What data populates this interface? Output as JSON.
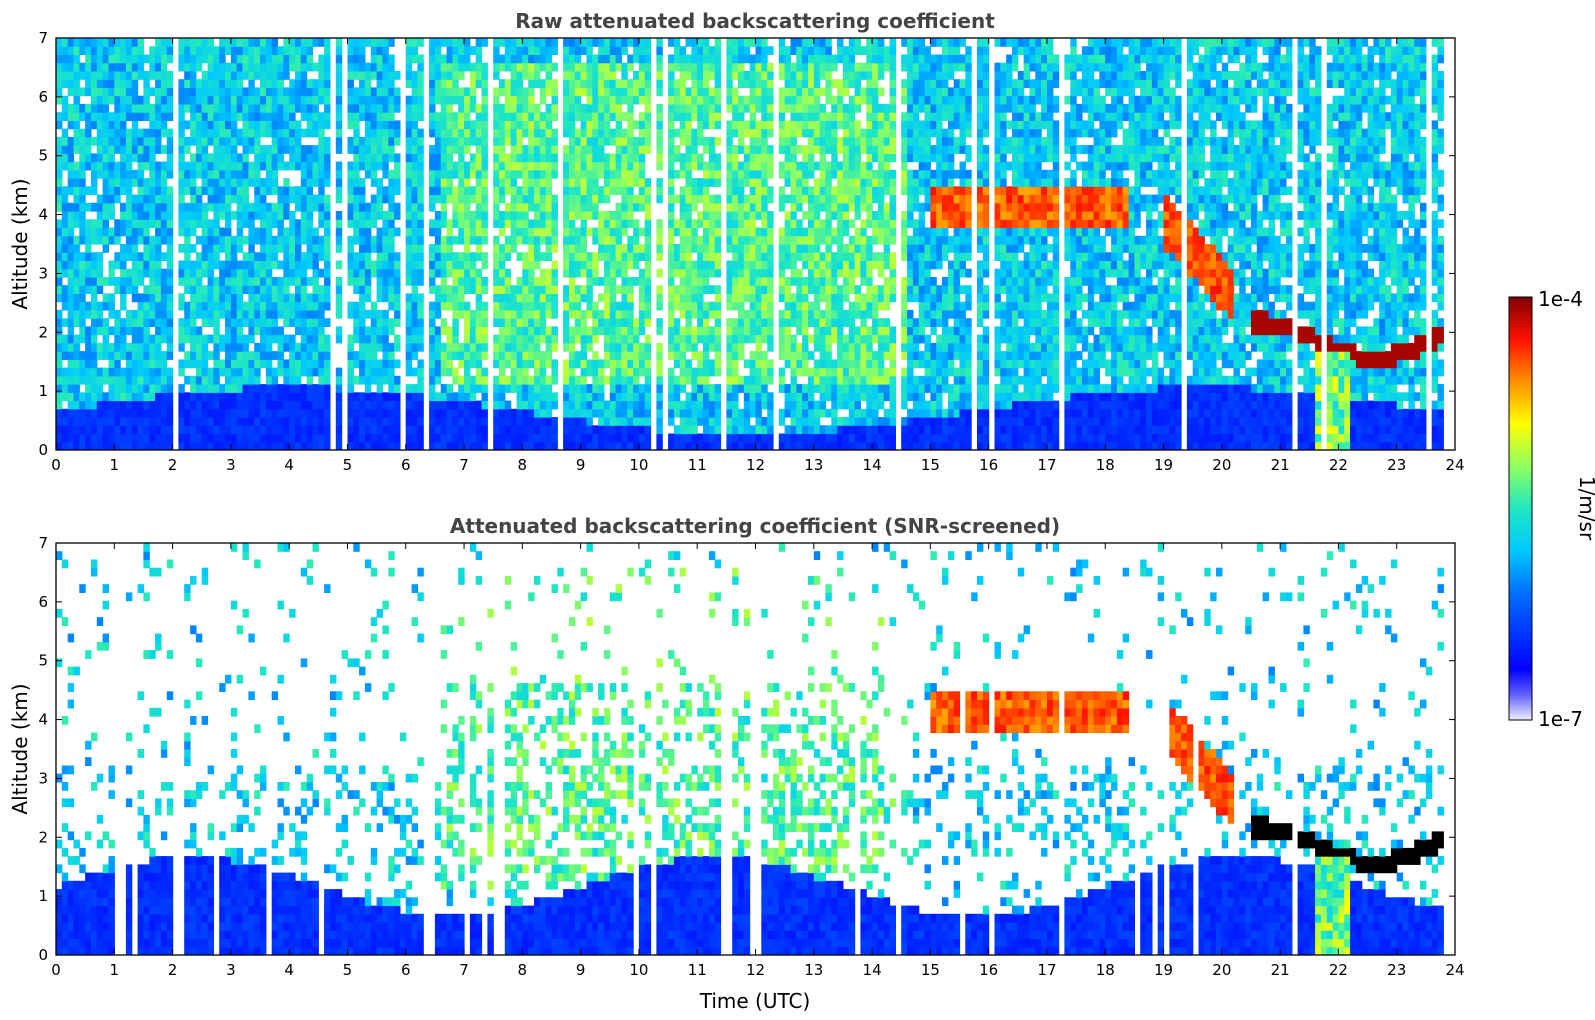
{
  "chart_data": [
    {
      "type": "heatmap",
      "title": "Raw attenuated backscattering coefficient",
      "xlabel": "",
      "ylabel": "Altitude (km)",
      "xlim": [
        0,
        24
      ],
      "ylim": [
        0,
        7
      ],
      "xticks": [
        0,
        1,
        2,
        3,
        4,
        5,
        6,
        7,
        8,
        9,
        10,
        11,
        12,
        13,
        14,
        15,
        16,
        17,
        18,
        19,
        20,
        21,
        22,
        23,
        24
      ],
      "yticks": [
        0,
        1,
        2,
        3,
        4,
        5,
        6,
        7
      ],
      "features": [
        {
          "name": "boundary-layer",
          "t_start": 0,
          "t_end": 23.8,
          "z_top": 1.0,
          "level": "low-blue"
        },
        {
          "name": "cloud-layer-4km",
          "t_start": 14.9,
          "t_end": 18.3,
          "z": 4.1,
          "level": "high"
        },
        {
          "name": "descending-cloud",
          "t_start": 19.0,
          "t_end": 20.2,
          "z_from": 3.8,
          "z_to": 2.5,
          "level": "high"
        },
        {
          "name": "low-cloud-2km",
          "t_start": 20.5,
          "t_end": 23.8,
          "z": 1.8,
          "level": "very-high"
        },
        {
          "name": "precipitation",
          "t_start": 21.6,
          "t_end": 22.2,
          "z_top": 1.6,
          "level": "mid"
        }
      ]
    },
    {
      "type": "heatmap",
      "title": "Attenuated backscattering coefficient (SNR-screened)",
      "xlabel": "Time (UTC)",
      "ylabel": "Altitude (km)",
      "xlim": [
        0,
        24
      ],
      "ylim": [
        0,
        7
      ],
      "xticks": [
        0,
        1,
        2,
        3,
        4,
        5,
        6,
        7,
        8,
        9,
        10,
        11,
        12,
        13,
        14,
        15,
        16,
        17,
        18,
        19,
        20,
        21,
        22,
        23,
        24
      ],
      "yticks": [
        0,
        1,
        2,
        3,
        4,
        5,
        6,
        7
      ],
      "features": [
        {
          "name": "boundary-layer",
          "t_start": 0,
          "t_end": 23.8,
          "z_top": 1.6,
          "level": "low-blue"
        },
        {
          "name": "aerosol-layer",
          "t_start": 6.5,
          "t_end": 14.0,
          "z_from": 1.0,
          "z_to": 4.5,
          "level": "mid-yellow"
        },
        {
          "name": "cloud-layer-4km",
          "t_start": 14.9,
          "t_end": 18.3,
          "z": 4.1,
          "level": "high"
        },
        {
          "name": "descending-cloud",
          "t_start": 19.0,
          "t_end": 20.2,
          "z_from": 3.8,
          "z_to": 2.5,
          "level": "high"
        },
        {
          "name": "low-cloud-2km",
          "t_start": 20.5,
          "t_end": 23.8,
          "z": 1.8,
          "level": "very-high"
        },
        {
          "name": "precipitation",
          "t_start": 21.6,
          "t_end": 22.2,
          "z_top": 1.6,
          "level": "mid"
        }
      ]
    }
  ],
  "colorbar": {
    "max_label": "1e-4",
    "min_label": "1e-7",
    "unit_label": "1/m/sr",
    "scale": "log",
    "colormap": "jet",
    "colors": [
      "#e8e8ff",
      "#0000ff",
      "#00a0ff",
      "#00e0e0",
      "#80ff80",
      "#ffff00",
      "#ff8000",
      "#ff0000",
      "#800000"
    ]
  }
}
